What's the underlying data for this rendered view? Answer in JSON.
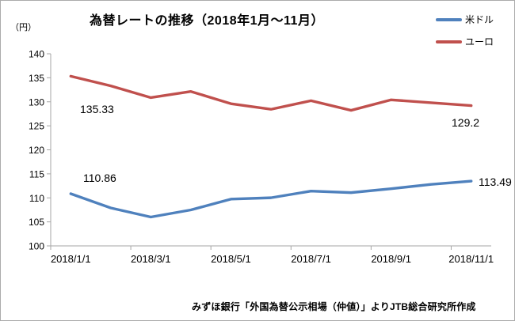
{
  "page": {
    "background": "#ffffff",
    "border_color": "#ababab",
    "axis_color": "#a6a6a6"
  },
  "header": {
    "title": "為替レートの推移（2018年1月～11月）",
    "unit_label": "（円）"
  },
  "legend": {
    "position": "top-right",
    "items": [
      {
        "label": "米ドル",
        "color": "#4f81bd"
      },
      {
        "label": "ユーロ",
        "color": "#c0504d"
      }
    ]
  },
  "footer": {
    "source": "みずほ銀行「外国為替公示相場（仲値）」よりJTB総合研究所作成"
  },
  "chart_data": {
    "type": "line",
    "title": "為替レートの推移（2018年1月～11月）",
    "ylabel": "円",
    "ylim": [
      100,
      140
    ],
    "ytick_step": 5,
    "yticks": [
      100,
      105,
      110,
      115,
      120,
      125,
      130,
      135,
      140
    ],
    "grid": false,
    "markers": false,
    "legend_position": "top-right",
    "x": [
      "2018/1/1",
      "2018/2/1",
      "2018/3/1",
      "2018/4/1",
      "2018/5/1",
      "2018/6/1",
      "2018/7/1",
      "2018/8/1",
      "2018/9/1",
      "2018/10/1",
      "2018/11/1"
    ],
    "x_tick_labels": [
      "2018/1/1",
      "2018/3/1",
      "2018/5/1",
      "2018/7/1",
      "2018/9/1",
      "2018/11/1"
    ],
    "series": [
      {
        "name": "米ドル",
        "color": "#4f81bd",
        "values": [
          110.86,
          107.9,
          106.01,
          107.49,
          109.74,
          110.02,
          111.41,
          111.09,
          111.91,
          112.8,
          113.49
        ]
      },
      {
        "name": "ユーロ",
        "color": "#c0504d",
        "values": [
          135.33,
          133.31,
          130.87,
          132.15,
          129.6,
          128.44,
          130.23,
          128.22,
          130.41,
          129.8,
          129.2
        ]
      }
    ],
    "point_labels": [
      {
        "series": "ユーロ",
        "point": "2018/1/1",
        "text": "135.33"
      },
      {
        "series": "米ドル",
        "point": "2018/1/1",
        "text": "110.86"
      },
      {
        "series": "ユーロ",
        "point": "2018/11/1",
        "text": "129.2"
      },
      {
        "series": "米ドル",
        "point": "2018/11/1",
        "text": "113.49"
      }
    ]
  }
}
